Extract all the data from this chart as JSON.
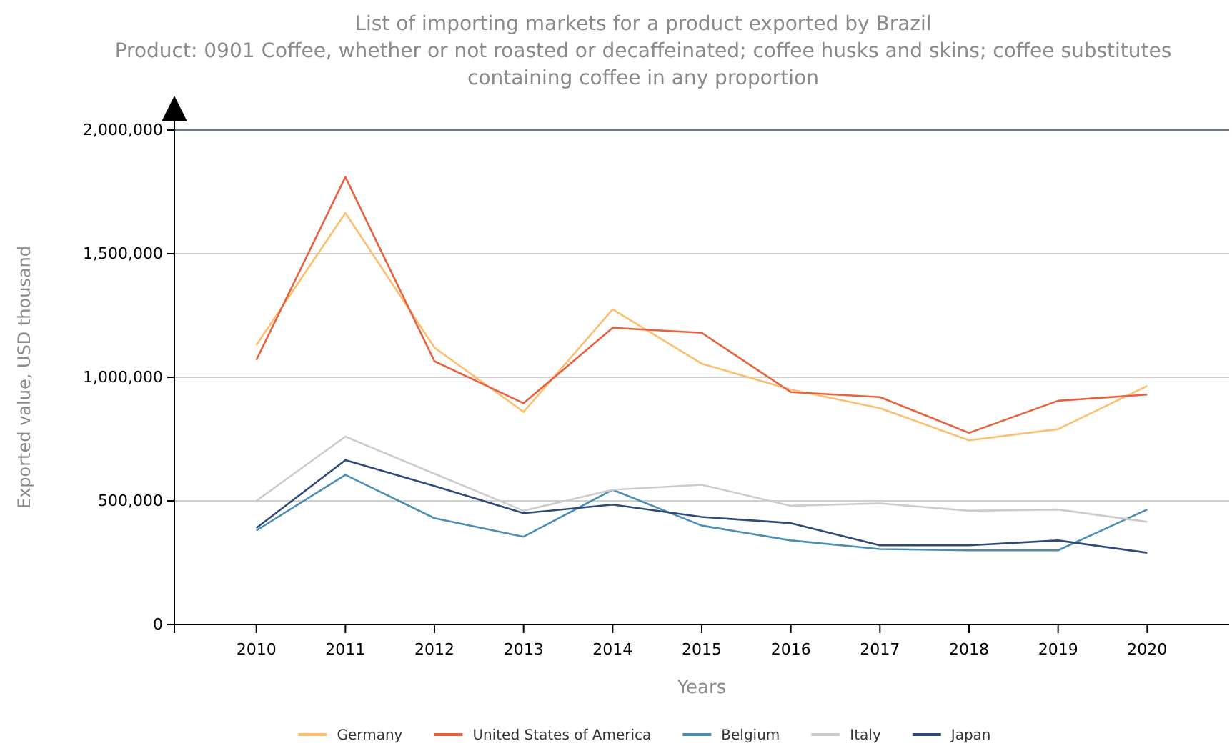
{
  "chart_data": {
    "type": "line",
    "title": "List of importing markets for a product exported by Brazil",
    "subtitle": "Product: 0901 Coffee, whether or not roasted or decaffeinated; coffee husks and skins; coffee substitutes containing coffee in any proportion",
    "xlabel": "Years",
    "ylabel": "Exported value, USD thousand",
    "categories": [
      "2010",
      "2011",
      "2012",
      "2013",
      "2014",
      "2015",
      "2016",
      "2017",
      "2018",
      "2019",
      "2020"
    ],
    "series": [
      {
        "name": "Germany",
        "color": "#fdbf6f",
        "values": [
          1130000,
          1665000,
          1120000,
          860000,
          1275000,
          1055000,
          950000,
          875000,
          745000,
          790000,
          965000
        ]
      },
      {
        "name": "United States of America",
        "color": "#e8603c",
        "values": [
          1070000,
          1810000,
          1065000,
          895000,
          1200000,
          1180000,
          940000,
          920000,
          775000,
          905000,
          930000
        ]
      },
      {
        "name": "Belgium",
        "color": "#4a8db5",
        "values": [
          380000,
          605000,
          430000,
          355000,
          545000,
          400000,
          340000,
          305000,
          300000,
          300000,
          465000
        ]
      },
      {
        "name": "Italy",
        "color": "#cccccc",
        "values": [
          500000,
          760000,
          610000,
          460000,
          545000,
          565000,
          480000,
          490000,
          460000,
          465000,
          415000
        ]
      },
      {
        "name": "Japan",
        "color": "#2e4a7d",
        "values": [
          390000,
          665000,
          560000,
          450000,
          485000,
          435000,
          410000,
          320000,
          320000,
          340000,
          290000
        ]
      }
    ],
    "ylim": [
      0,
      2000000
    ],
    "yticks": [
      {
        "value": 0,
        "label": "0"
      },
      {
        "value": 500000,
        "label": "500,000"
      },
      {
        "value": 1000000,
        "label": "1,000,000"
      },
      {
        "value": 1500000,
        "label": "1,500,000"
      },
      {
        "value": 2000000,
        "label": "2,000,000"
      }
    ],
    "grid": "y",
    "legend": "bottom",
    "marker": "none",
    "line_style": "solid"
  }
}
